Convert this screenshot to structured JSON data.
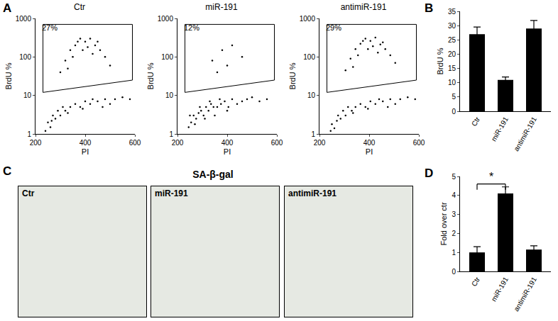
{
  "chart_data": [
    {
      "panel": "A",
      "type": "scatter",
      "title": "Ctr",
      "x_label": "PI",
      "y_label": "BrdU %",
      "log": "y",
      "xlim": [
        200,
        600
      ],
      "xticks": [
        200,
        400,
        600
      ],
      "ylim": [
        1,
        1000
      ],
      "yticks": [
        1,
        10,
        100,
        1000
      ],
      "color": "#000000",
      "marker": "dot",
      "x": [
        250,
        260,
        270,
        280,
        290,
        300,
        310,
        320,
        340,
        360,
        380,
        400,
        420,
        450,
        480,
        500,
        520,
        550,
        580,
        240,
        265,
        330,
        390,
        430,
        470,
        300,
        320,
        340,
        360,
        380,
        400,
        420,
        440,
        460,
        480,
        500,
        350,
        390,
        410,
        430,
        330,
        450,
        370
      ],
      "values": [
        2,
        1.5,
        3,
        2.5,
        4,
        3,
        5,
        4,
        5,
        6,
        5,
        7,
        6,
        7,
        8,
        6,
        8,
        9,
        8,
        1.2,
        2.2,
        3.5,
        4.5,
        8,
        5,
        40,
        80,
        150,
        200,
        300,
        250,
        300,
        200,
        150,
        100,
        60,
        100,
        150,
        180,
        120,
        50,
        250,
        250
      ],
      "gate": {
        "x": [
          230,
          230,
          590,
          590,
          230
        ],
        "y": [
          12,
          700,
          700,
          25,
          12
        ]
      },
      "gate_label": "27%"
    },
    {
      "type": "scatter",
      "title": "miR-191",
      "x_label": "PI",
      "y_label": "BrdU %",
      "log": "y",
      "xlim": [
        200,
        600
      ],
      "xticks": [
        200,
        400,
        600
      ],
      "ylim": [
        1,
        1000
      ],
      "yticks": [
        1,
        10,
        100,
        1000
      ],
      "color": "#000000",
      "marker": "dot",
      "x": [
        245,
        255,
        265,
        275,
        285,
        295,
        305,
        315,
        325,
        335,
        345,
        360,
        375,
        390,
        405,
        420,
        440,
        460,
        480,
        500,
        530,
        560,
        250,
        270,
        290,
        310,
        330,
        350,
        370,
        400,
        340,
        380,
        420,
        460,
        400,
        360
      ],
      "values": [
        1.5,
        2,
        3,
        2.5,
        3.5,
        4,
        3,
        5,
        4,
        6,
        5,
        5,
        6,
        7,
        5,
        8,
        6,
        7,
        8,
        9,
        7,
        8,
        3,
        1.8,
        5,
        2.5,
        7,
        3,
        8,
        4,
        80,
        150,
        200,
        100,
        60,
        40
      ],
      "gate": {
        "x": [
          230,
          230,
          590,
          590,
          230
        ],
        "y": [
          12,
          700,
          700,
          25,
          12
        ]
      },
      "gate_label": "12%"
    },
    {
      "type": "scatter",
      "title": "antimiR-191",
      "x_label": "PI",
      "y_label": "BrdU %",
      "log": "y",
      "xlim": [
        200,
        600
      ],
      "xticks": [
        200,
        400,
        600
      ],
      "ylim": [
        1,
        1000
      ],
      "yticks": [
        1,
        10,
        100,
        1000
      ],
      "color": "#000000",
      "marker": "dot",
      "x": [
        250,
        260,
        275,
        285,
        295,
        305,
        315,
        330,
        345,
        365,
        385,
        405,
        425,
        455,
        485,
        505,
        525,
        555,
        585,
        245,
        270,
        335,
        395,
        440,
        475,
        305,
        325,
        345,
        365,
        385,
        405,
        425,
        445,
        465,
        485,
        505,
        355,
        395,
        415,
        435,
        335,
        455,
        375
      ],
      "values": [
        1.8,
        1.4,
        3,
        2.5,
        4,
        3,
        5,
        4,
        5,
        6,
        5,
        7,
        6,
        7,
        8,
        6,
        8,
        9,
        8,
        1.2,
        2.2,
        3.5,
        4.5,
        8,
        5,
        45,
        90,
        160,
        220,
        300,
        260,
        320,
        210,
        160,
        110,
        70,
        110,
        160,
        190,
        130,
        55,
        240,
        260
      ],
      "gate": {
        "x": [
          230,
          230,
          590,
          590,
          230
        ],
        "y": [
          12,
          700,
          700,
          25,
          12
        ]
      },
      "gate_label": "29%"
    },
    {
      "panel": "B",
      "type": "bar",
      "y_label": "BrdU %",
      "categories": [
        "Ctr",
        "miR-191",
        "antimiR-191"
      ],
      "values": [
        27,
        11,
        29
      ],
      "errors": [
        2.5,
        1,
        2.8
      ],
      "color": "#000000",
      "ylim": [
        0,
        35
      ],
      "yticks": [
        0,
        5,
        10,
        15,
        20,
        25,
        30,
        35
      ]
    },
    {
      "panel": "D",
      "type": "bar",
      "y_label": "Fold over ctr",
      "categories": [
        "Ctr",
        "miR-191",
        "antimiR-191"
      ],
      "values": [
        1,
        4.1,
        1.15
      ],
      "errors": [
        0.3,
        0.35,
        0.2
      ],
      "color": "#000000",
      "ylim": [
        0,
        5
      ],
      "yticks": [
        0,
        1,
        2,
        3,
        4,
        5
      ],
      "annotations": [
        {
          "text": "*",
          "from": "Ctr",
          "to": "miR-191",
          "y": 4.6
        }
      ]
    }
  ],
  "panel_c": {
    "panel": "C",
    "title": "SA-β-gal",
    "images": [
      "Ctr",
      "miR-191",
      "antimiR-191"
    ]
  }
}
